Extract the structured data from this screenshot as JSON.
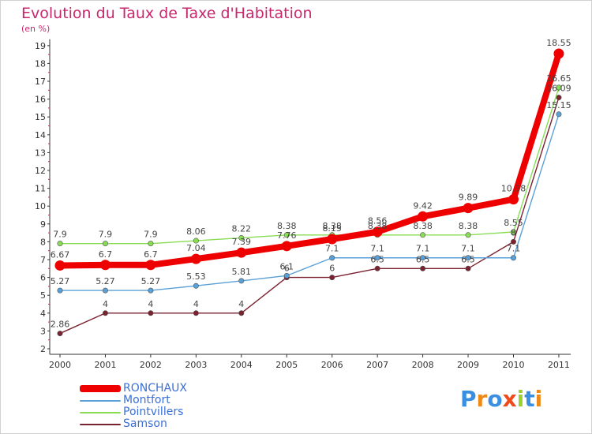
{
  "title": "Evolution du Taux de Taxe d'Habitation",
  "subtitle": "(en %)",
  "chart_data": {
    "type": "line",
    "title": "Evolution du Taux de Taxe d'Habitation",
    "subtitle": "(en %)",
    "xlabel": "",
    "ylabel": "",
    "x": [
      "2000",
      "2001",
      "2002",
      "2003",
      "2004",
      "2005",
      "2006",
      "2007",
      "2008",
      "2009",
      "2010",
      "2011"
    ],
    "ylim": [
      2,
      19
    ],
    "yticks": [
      "2",
      "3",
      "4",
      "5",
      "6",
      "7",
      "8",
      "9",
      "10",
      "11",
      "12",
      "13",
      "14",
      "15",
      "16",
      "17",
      "18",
      "19"
    ],
    "grid": false,
    "legend": "bottom-left",
    "series": [
      {
        "name": "RONCHAUX",
        "color": "#ee0000",
        "values": [
          6.67,
          6.7,
          6.7,
          7.04,
          7.39,
          7.76,
          8.15,
          8.56,
          9.42,
          9.89,
          10.38,
          18.55
        ]
      },
      {
        "name": "Montfort",
        "color": "#5aa0d8",
        "values": [
          5.27,
          5.27,
          5.27,
          5.53,
          5.81,
          6.1,
          7.1,
          7.1,
          7.1,
          7.1,
          7.1,
          15.15
        ]
      },
      {
        "name": "Pointvillers",
        "color": "#88dd55",
        "values": [
          7.9,
          7.9,
          7.9,
          8.06,
          8.22,
          8.38,
          8.38,
          8.38,
          8.38,
          8.38,
          8.55,
          16.65
        ]
      },
      {
        "name": "Samson",
        "color": "#7a2230",
        "values": [
          2.86,
          4,
          4,
          4,
          4,
          6,
          6,
          6.5,
          6.5,
          6.5,
          8,
          16.09
        ]
      }
    ],
    "data_labels": {
      "RONCHAUX": [
        "6.67",
        "6.7",
        "6.7",
        "7.04",
        "7.39",
        "7.76",
        "8.15",
        "8.56",
        "9.42",
        "9.89",
        "10.38",
        "18.55"
      ],
      "Montfort": [
        "5.27",
        "5.27",
        "5.27",
        "5.53",
        "5.81",
        "6.1",
        "7.1",
        "7.1",
        "7.1",
        "7.1",
        "7.1",
        "15.15"
      ],
      "Pointvillers": [
        "7.9",
        "7.9",
        "7.9",
        "8.06",
        "8.22",
        "8.38",
        "8.38",
        "8.38",
        "8.38",
        "8.38",
        "8.55",
        "16.65"
      ],
      "Samson": [
        "2.86",
        "4",
        "4",
        "4",
        "4",
        "6",
        "6",
        "6.5",
        "6.5",
        "6.5",
        "8",
        "16.09"
      ]
    }
  },
  "legend": {
    "items": [
      {
        "label": "RONCHAUX",
        "color": "#ee0000"
      },
      {
        "label": "Montfort",
        "color": "#5aa0d8"
      },
      {
        "label": "Pointvillers",
        "color": "#88dd55"
      },
      {
        "label": "Samson",
        "color": "#7a2230"
      }
    ]
  },
  "logo": {
    "text": "Proxiti",
    "letters": [
      {
        "char": "P",
        "color": "#3a8fe0"
      },
      {
        "char": "r",
        "color": "#ee8a1a"
      },
      {
        "char": "o",
        "color": "#3a8fe0"
      },
      {
        "char": "x",
        "color": "#ee4a1a"
      },
      {
        "char": "i",
        "color": "#9bd12e"
      },
      {
        "char": "t",
        "color": "#3a8fe0"
      },
      {
        "char": "i",
        "color": "#ee8a1a"
      }
    ]
  }
}
